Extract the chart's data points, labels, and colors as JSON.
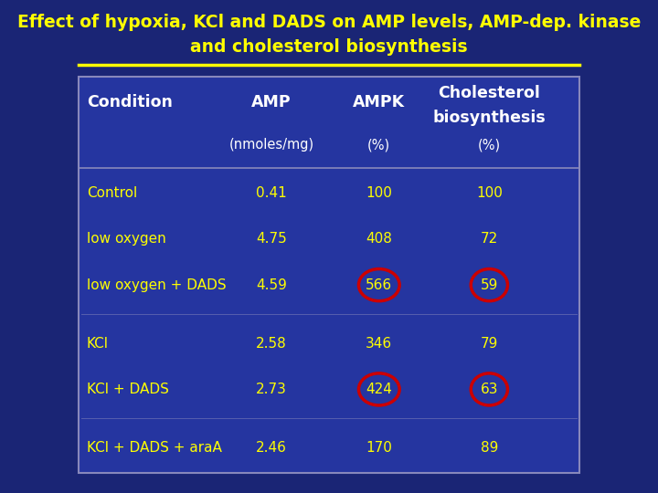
{
  "title_line1": "Effect of hypoxia, KCl and DADS on AMP levels, AMP-dep. kinase",
  "title_line2": "and cholesterol biosynthesis",
  "title_color": "#FFFF00",
  "outer_bg": "#1a2575",
  "table_bg": "#2535a0",
  "table_border_color": "#8888bb",
  "header_sep_color": "#8888bb",
  "separator_color": "#FFFF00",
  "text_color": "#FFFF00",
  "header_text_color": "#FFFFFF",
  "circle_color": "#cc0000",
  "col_subheaders": [
    "",
    "(nmoles/mg)",
    "(%)",
    "(%)"
  ],
  "rows": [
    {
      "condition": "Control",
      "amp": "0.41",
      "ampk": "100",
      "chol": "100",
      "circle_ampk": false,
      "circle_chol": false
    },
    {
      "condition": "low oxygen",
      "amp": "4.75",
      "ampk": "408",
      "chol": "72",
      "circle_ampk": false,
      "circle_chol": false
    },
    {
      "condition": "low oxygen + DADS",
      "amp": "4.59",
      "ampk": "566",
      "chol": "59",
      "circle_ampk": true,
      "circle_chol": true
    },
    {
      "condition": "KCl",
      "amp": "2.58",
      "ampk": "346",
      "chol": "79",
      "circle_ampk": false,
      "circle_chol": false
    },
    {
      "condition": "KCl + DADS",
      "amp": "2.73",
      "ampk": "424",
      "chol": "63",
      "circle_ampk": true,
      "circle_chol": true
    },
    {
      "condition": "KCl + DADS + araA",
      "amp": "2.46",
      "ampk": "170",
      "chol": "89",
      "circle_ampk": false,
      "circle_chol": false
    }
  ],
  "group_separators_after": [
    2,
    4
  ],
  "figsize": [
    7.2,
    5.4
  ],
  "dpi": 100
}
